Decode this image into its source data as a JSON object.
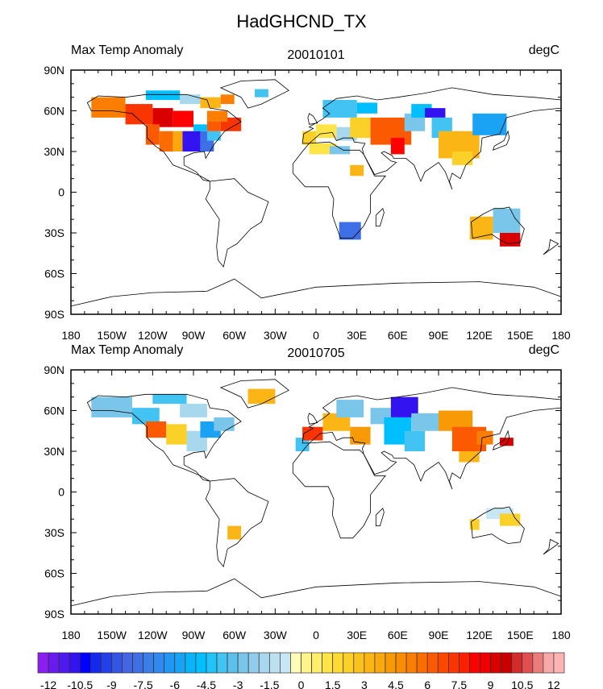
{
  "chart_data": {
    "type": "heatmap",
    "title": "HadGHCND_TX",
    "panels": [
      {
        "left_string": "Max Temp Anomaly",
        "center_string": "20010101",
        "right_string": "degC",
        "anomaly_regions": [
          [
            -165,
            -140,
            55,
            70,
            5
          ],
          [
            -140,
            -120,
            50,
            65,
            7
          ],
          [
            -120,
            -105,
            48,
            62,
            9
          ],
          [
            -105,
            -90,
            48,
            60,
            8
          ],
          [
            -125,
            -115,
            35,
            50,
            6
          ],
          [
            -115,
            -105,
            30,
            45,
            5.5
          ],
          [
            -105,
            -98,
            30,
            45,
            3.5
          ],
          [
            -98,
            -85,
            30,
            45,
            -11
          ],
          [
            -85,
            -75,
            30,
            45,
            -8
          ],
          [
            -80,
            -70,
            38,
            45,
            -4
          ],
          [
            -90,
            -80,
            45,
            50,
            -5
          ],
          [
            -80,
            -70,
            45,
            52,
            6
          ],
          [
            -70,
            -55,
            45,
            55,
            7
          ],
          [
            -80,
            -65,
            52,
            60,
            5
          ],
          [
            -125,
            -100,
            68,
            75,
            -5
          ],
          [
            -100,
            -85,
            65,
            72,
            -2
          ],
          [
            -85,
            -70,
            62,
            70,
            3
          ],
          [
            -70,
            -60,
            65,
            72,
            5
          ],
          [
            -45,
            -35,
            70,
            76,
            -4
          ],
          [
            -10,
            0,
            35,
            45,
            2
          ],
          [
            0,
            15,
            40,
            50,
            1
          ],
          [
            15,
            30,
            38,
            48,
            -2
          ],
          [
            5,
            30,
            55,
            68,
            -4
          ],
          [
            30,
            45,
            58,
            66,
            -5
          ],
          [
            25,
            40,
            40,
            55,
            2
          ],
          [
            40,
            70,
            35,
            55,
            6
          ],
          [
            55,
            65,
            28,
            40,
            8
          ],
          [
            65,
            80,
            45,
            58,
            -3
          ],
          [
            70,
            85,
            55,
            65,
            -5
          ],
          [
            80,
            95,
            55,
            62,
            -11
          ],
          [
            85,
            100,
            40,
            55,
            -4
          ],
          [
            90,
            120,
            25,
            45,
            3
          ],
          [
            100,
            115,
            20,
            30,
            2
          ],
          [
            115,
            140,
            42,
            58,
            -6
          ],
          [
            -5,
            15,
            28,
            36,
            1
          ],
          [
            10,
            25,
            28,
            34,
            -3
          ],
          [
            25,
            35,
            12,
            20,
            3
          ],
          [
            17,
            33,
            -35,
            -22,
            -8
          ],
          [
            113,
            130,
            -35,
            -18,
            3
          ],
          [
            130,
            150,
            -30,
            -12,
            -3
          ],
          [
            135,
            150,
            -40,
            -30,
            9
          ]
        ]
      },
      {
        "left_string": "Max Temp Anomaly",
        "center_string": "20010705",
        "right_string": "degC",
        "anomaly_regions": [
          [
            -165,
            -135,
            55,
            70,
            -3
          ],
          [
            -135,
            -115,
            50,
            62,
            -4
          ],
          [
            -125,
            -110,
            40,
            52,
            6
          ],
          [
            -110,
            -95,
            35,
            50,
            2
          ],
          [
            -95,
            -80,
            30,
            45,
            -2
          ],
          [
            -85,
            -70,
            40,
            52,
            -6
          ],
          [
            -75,
            -60,
            45,
            55,
            -3
          ],
          [
            -100,
            -80,
            55,
            65,
            -2
          ],
          [
            -120,
            -95,
            65,
            72,
            -4
          ],
          [
            -50,
            -30,
            65,
            76,
            3
          ],
          [
            -15,
            -5,
            30,
            40,
            -4
          ],
          [
            -10,
            5,
            38,
            48,
            7
          ],
          [
            5,
            25,
            45,
            58,
            3
          ],
          [
            15,
            35,
            55,
            68,
            -3
          ],
          [
            25,
            40,
            35,
            48,
            4
          ],
          [
            40,
            55,
            50,
            62,
            -3
          ],
          [
            55,
            75,
            55,
            70,
            -11
          ],
          [
            50,
            70,
            35,
            55,
            -5
          ],
          [
            70,
            90,
            45,
            58,
            -3
          ],
          [
            65,
            80,
            30,
            45,
            -4
          ],
          [
            90,
            115,
            45,
            60,
            4
          ],
          [
            100,
            125,
            30,
            48,
            6
          ],
          [
            118,
            130,
            35,
            45,
            5
          ],
          [
            135,
            145,
            34,
            40,
            9
          ],
          [
            105,
            120,
            22,
            30,
            3
          ],
          [
            -65,
            -55,
            -35,
            -25,
            3
          ],
          [
            113,
            120,
            -28,
            -20,
            2
          ],
          [
            125,
            145,
            -20,
            -12,
            -1
          ],
          [
            135,
            150,
            -25,
            -16,
            2
          ]
        ]
      }
    ],
    "xticks": [
      "180",
      "150W",
      "120W",
      "90W",
      "60W",
      "30W",
      "0",
      "30E",
      "60E",
      "90E",
      "120E",
      "150E",
      "180"
    ],
    "yticks": [
      "90N",
      "60N",
      "30N",
      "0",
      "30S",
      "60S",
      "90S"
    ],
    "xlim": [
      -180,
      180
    ],
    "ylim": [
      -90,
      90
    ],
    "colorbar": {
      "levels_min": -12,
      "levels_max": 12,
      "level_step": 0.5,
      "labels": [
        "-12",
        "-10.5",
        "-9",
        "-7.5",
        "-6",
        "-4.5",
        "-3",
        "-1.5",
        "0",
        "1.5",
        "3",
        "4.5",
        "6",
        "7.5",
        "9",
        "10.5",
        "12"
      ],
      "colors": [
        "#8a1ef0",
        "#6a1aee",
        "#4e1af0",
        "#3314f0",
        "#0000ff",
        "#1428f0",
        "#2340e8",
        "#3355e6",
        "#4466e0",
        "#3f6fe6",
        "#3a7ee8",
        "#2f89f0",
        "#2196f3",
        "#1aa3f5",
        "#0bb4f8",
        "#00bfff",
        "#20c4fb",
        "#42c3f2",
        "#5bc0ec",
        "#7ac6ea",
        "#91cdea",
        "#a8d8ee",
        "#bce0f0",
        "#c8e6f4",
        "#fffcb8",
        "#fff38a",
        "#ffee6a",
        "#ffe448",
        "#ffda30",
        "#fbd028",
        "#fcc21c",
        "#fbb515",
        "#f9a80e",
        "#f89a06",
        "#fb8d00",
        "#fb7e00",
        "#fb6d00",
        "#fc5a00",
        "#fb4800",
        "#fa3500",
        "#fc2000",
        "#ff0000",
        "#ee0000",
        "#db0000",
        "#c80000",
        "#d42a2a",
        "#e05050",
        "#ec7c7c",
        "#f8a8a8",
        "#ffb4b4"
      ]
    }
  }
}
